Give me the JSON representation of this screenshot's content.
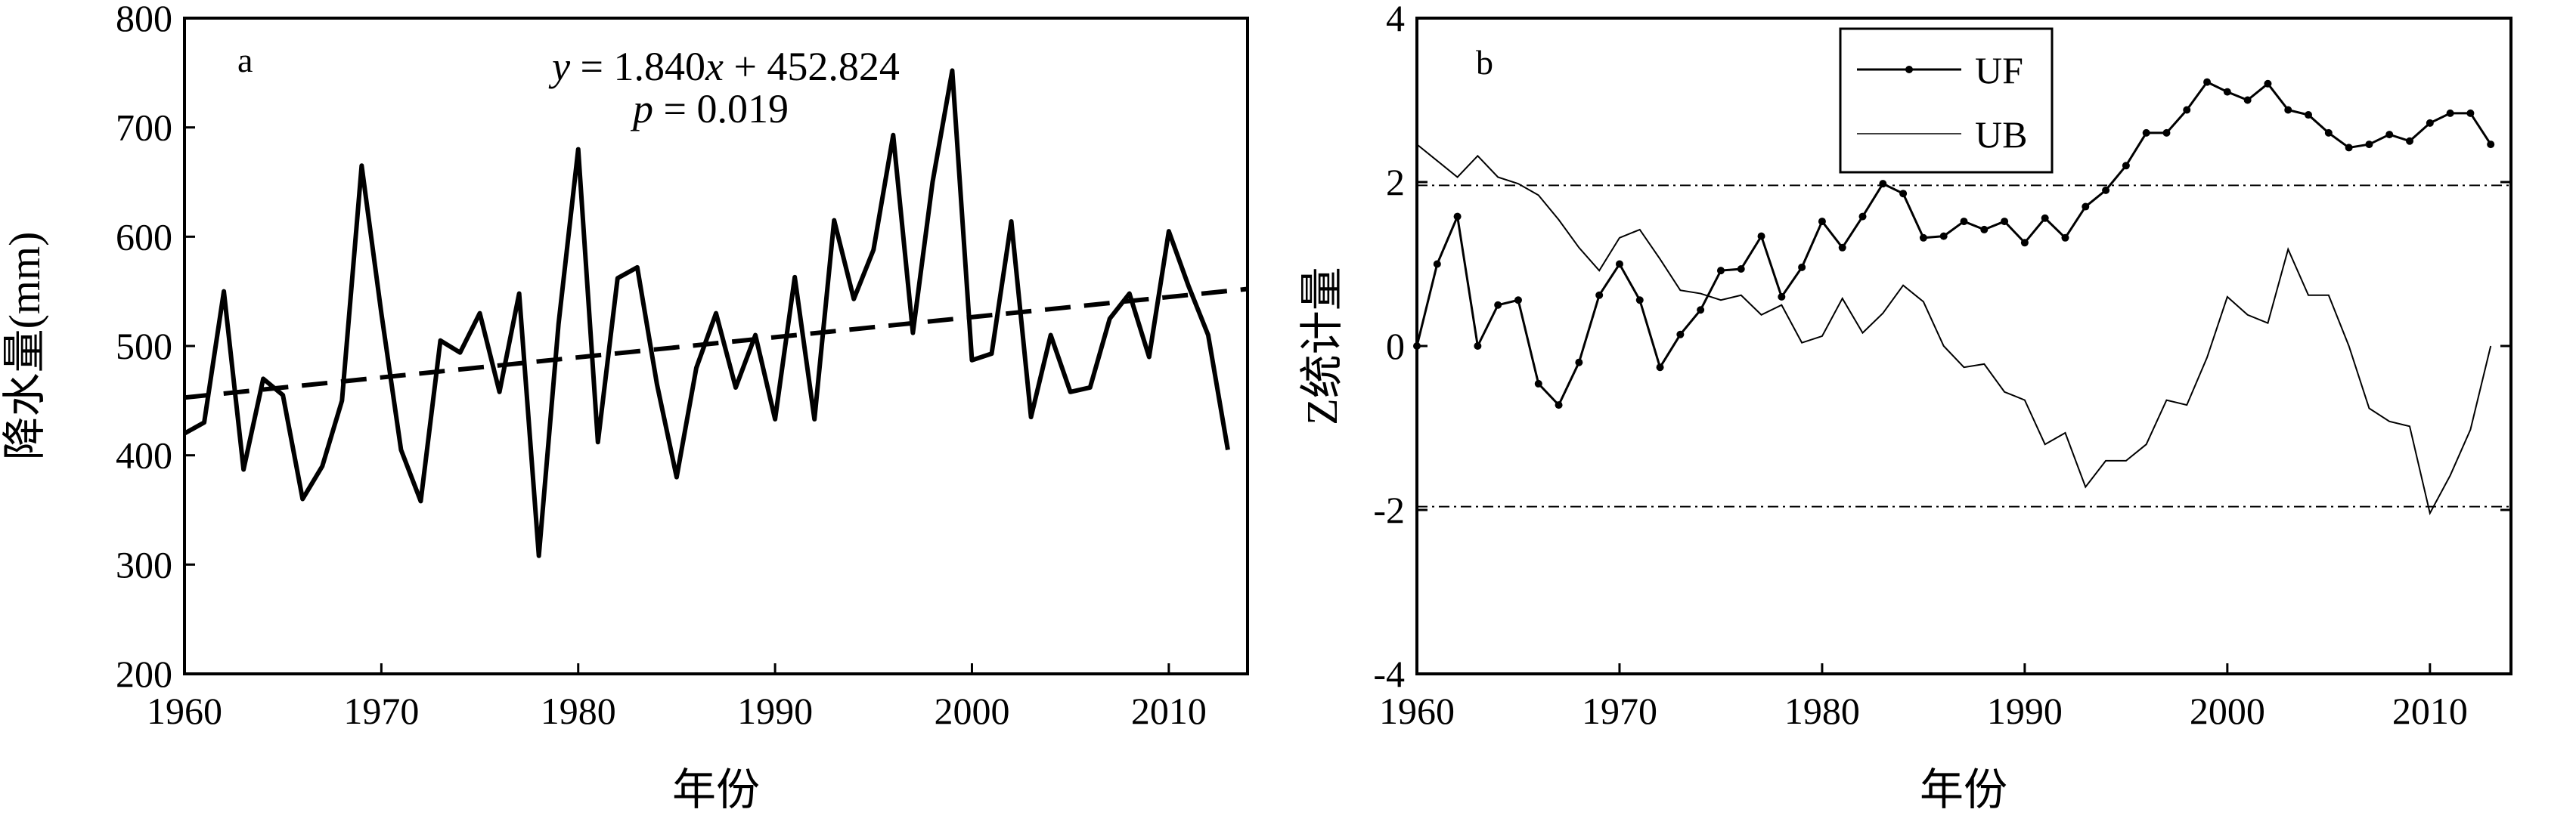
{
  "chart_data": [
    {
      "type": "line",
      "panel_label": "a",
      "xlabel": "年份",
      "ylabel": "降水量(mm)",
      "xlim": [
        1960,
        2014
      ],
      "ylim": [
        200,
        800
      ],
      "xticks": [
        1960,
        1970,
        1980,
        1990,
        2000,
        2010
      ],
      "yticks": [
        200,
        300,
        400,
        500,
        600,
        700,
        800
      ],
      "annotations": {
        "equation": {
          "y_var": "y",
          "equals": " = 1.840",
          "x_var": "x",
          "rest": " + 452.824"
        },
        "p_value": {
          "var": "p",
          "rest": " = 0.019"
        }
      },
      "series": [
        {
          "kind": "observed",
          "style": "solid",
          "x": [
            1960,
            1961,
            1962,
            1963,
            1964,
            1965,
            1966,
            1967,
            1968,
            1969,
            1970,
            1971,
            1972,
            1973,
            1974,
            1975,
            1976,
            1977,
            1978,
            1979,
            1980,
            1981,
            1982,
            1983,
            1984,
            1985,
            1986,
            1987,
            1988,
            1989,
            1990,
            1991,
            1992,
            1993,
            1994,
            1995,
            1996,
            1997,
            1998,
            1999,
            2000,
            2001,
            2002,
            2003,
            2004,
            2005,
            2006,
            2007,
            2008,
            2009,
            2010,
            2011,
            2012,
            2013
          ],
          "values": [
            420,
            430,
            550,
            387,
            470,
            455,
            360,
            390,
            450,
            665,
            530,
            405,
            358,
            505,
            494,
            530,
            458,
            548,
            308,
            520,
            680,
            412,
            562,
            572,
            465,
            380,
            480,
            530,
            462,
            510,
            433,
            563,
            433,
            615,
            543,
            588,
            693,
            512,
            650,
            752,
            487,
            493,
            614,
            435,
            510,
            458,
            462,
            525,
            548,
            490,
            605,
            555,
            510,
            405
          ]
        },
        {
          "kind": "trend",
          "style": "dashed",
          "slope": 1.84,
          "intercept_at_1960": 452.824,
          "x": [
            1960,
            2014
          ],
          "values": [
            452.824,
            552.184
          ]
        }
      ]
    },
    {
      "type": "line",
      "panel_label": "b",
      "xlabel": "年份",
      "ylabel": "Z统计量",
      "xlim": [
        1960,
        2014
      ],
      "ylim": [
        -4,
        4
      ],
      "xticks": [
        1960,
        1970,
        1980,
        1990,
        2000,
        2010
      ],
      "yticks": [
        -4,
        -2,
        0,
        2,
        4
      ],
      "legend_position": "top-center",
      "reference_lines": [
        1.96,
        -1.96
      ],
      "x": [
        1960,
        1961,
        1962,
        1963,
        1964,
        1965,
        1966,
        1967,
        1968,
        1969,
        1970,
        1971,
        1972,
        1973,
        1974,
        1975,
        1976,
        1977,
        1978,
        1979,
        1980,
        1981,
        1982,
        1983,
        1984,
        1985,
        1986,
        1987,
        1988,
        1989,
        1990,
        1991,
        1992,
        1993,
        1994,
        1995,
        1996,
        1997,
        1998,
        1999,
        2000,
        2001,
        2002,
        2003,
        2004,
        2005,
        2006,
        2007,
        2008,
        2009,
        2010,
        2011,
        2012,
        2013
      ],
      "series": [
        {
          "name": "UF",
          "style": "solid-with-markers",
          "values": [
            0,
            1.0,
            1.58,
            0,
            0.5,
            0.56,
            -0.46,
            -0.72,
            -0.2,
            0.62,
            1.0,
            0.56,
            -0.26,
            0.14,
            0.44,
            0.92,
            0.94,
            1.34,
            0.6,
            0.96,
            1.52,
            1.2,
            1.58,
            1.98,
            1.86,
            1.32,
            1.34,
            1.52,
            1.42,
            1.52,
            1.26,
            1.56,
            1.32,
            1.7,
            1.9,
            2.2,
            2.6,
            2.6,
            2.88,
            3.22,
            3.1,
            3.0,
            3.2,
            2.88,
            2.82,
            2.6,
            2.42,
            2.46,
            2.58,
            2.5,
            2.72,
            2.84,
            2.84,
            2.46
          ]
        },
        {
          "name": "UB",
          "style": "thin-solid",
          "values": [
            2.46,
            2.26,
            2.06,
            2.32,
            2.06,
            1.98,
            1.84,
            1.54,
            1.2,
            0.92,
            1.32,
            1.42,
            1.06,
            0.68,
            0.64,
            0.56,
            0.62,
            0.38,
            0.5,
            0.04,
            0.12,
            0.58,
            0.16,
            0.4,
            0.74,
            0.54,
            0,
            -0.26,
            -0.22,
            -0.56,
            -0.66,
            -1.2,
            -1.06,
            -1.72,
            -1.4,
            -1.4,
            -1.2,
            -0.66,
            -0.72,
            -0.14,
            0.6,
            0.38,
            0.28,
            1.18,
            0.62,
            0.62,
            0,
            -0.76,
            -0.92,
            -0.98,
            -2.04,
            -1.58,
            -1.02,
            0
          ]
        }
      ]
    }
  ]
}
